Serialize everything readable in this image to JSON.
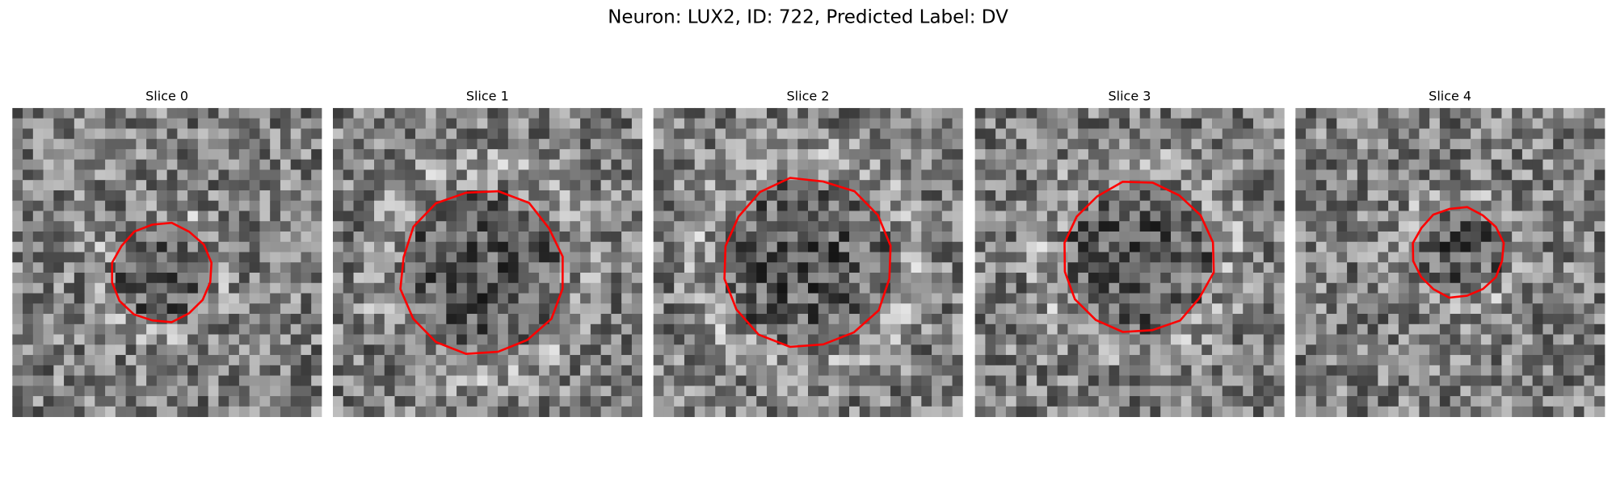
{
  "title": "Neuron: LUX2, ID: 722, Predicted Label: DV",
  "panels": [
    {
      "title": "Slice 0"
    },
    {
      "title": "Slice 1"
    },
    {
      "title": "Slice 2"
    },
    {
      "title": "Slice 3"
    },
    {
      "title": "Slice 4"
    }
  ]
}
